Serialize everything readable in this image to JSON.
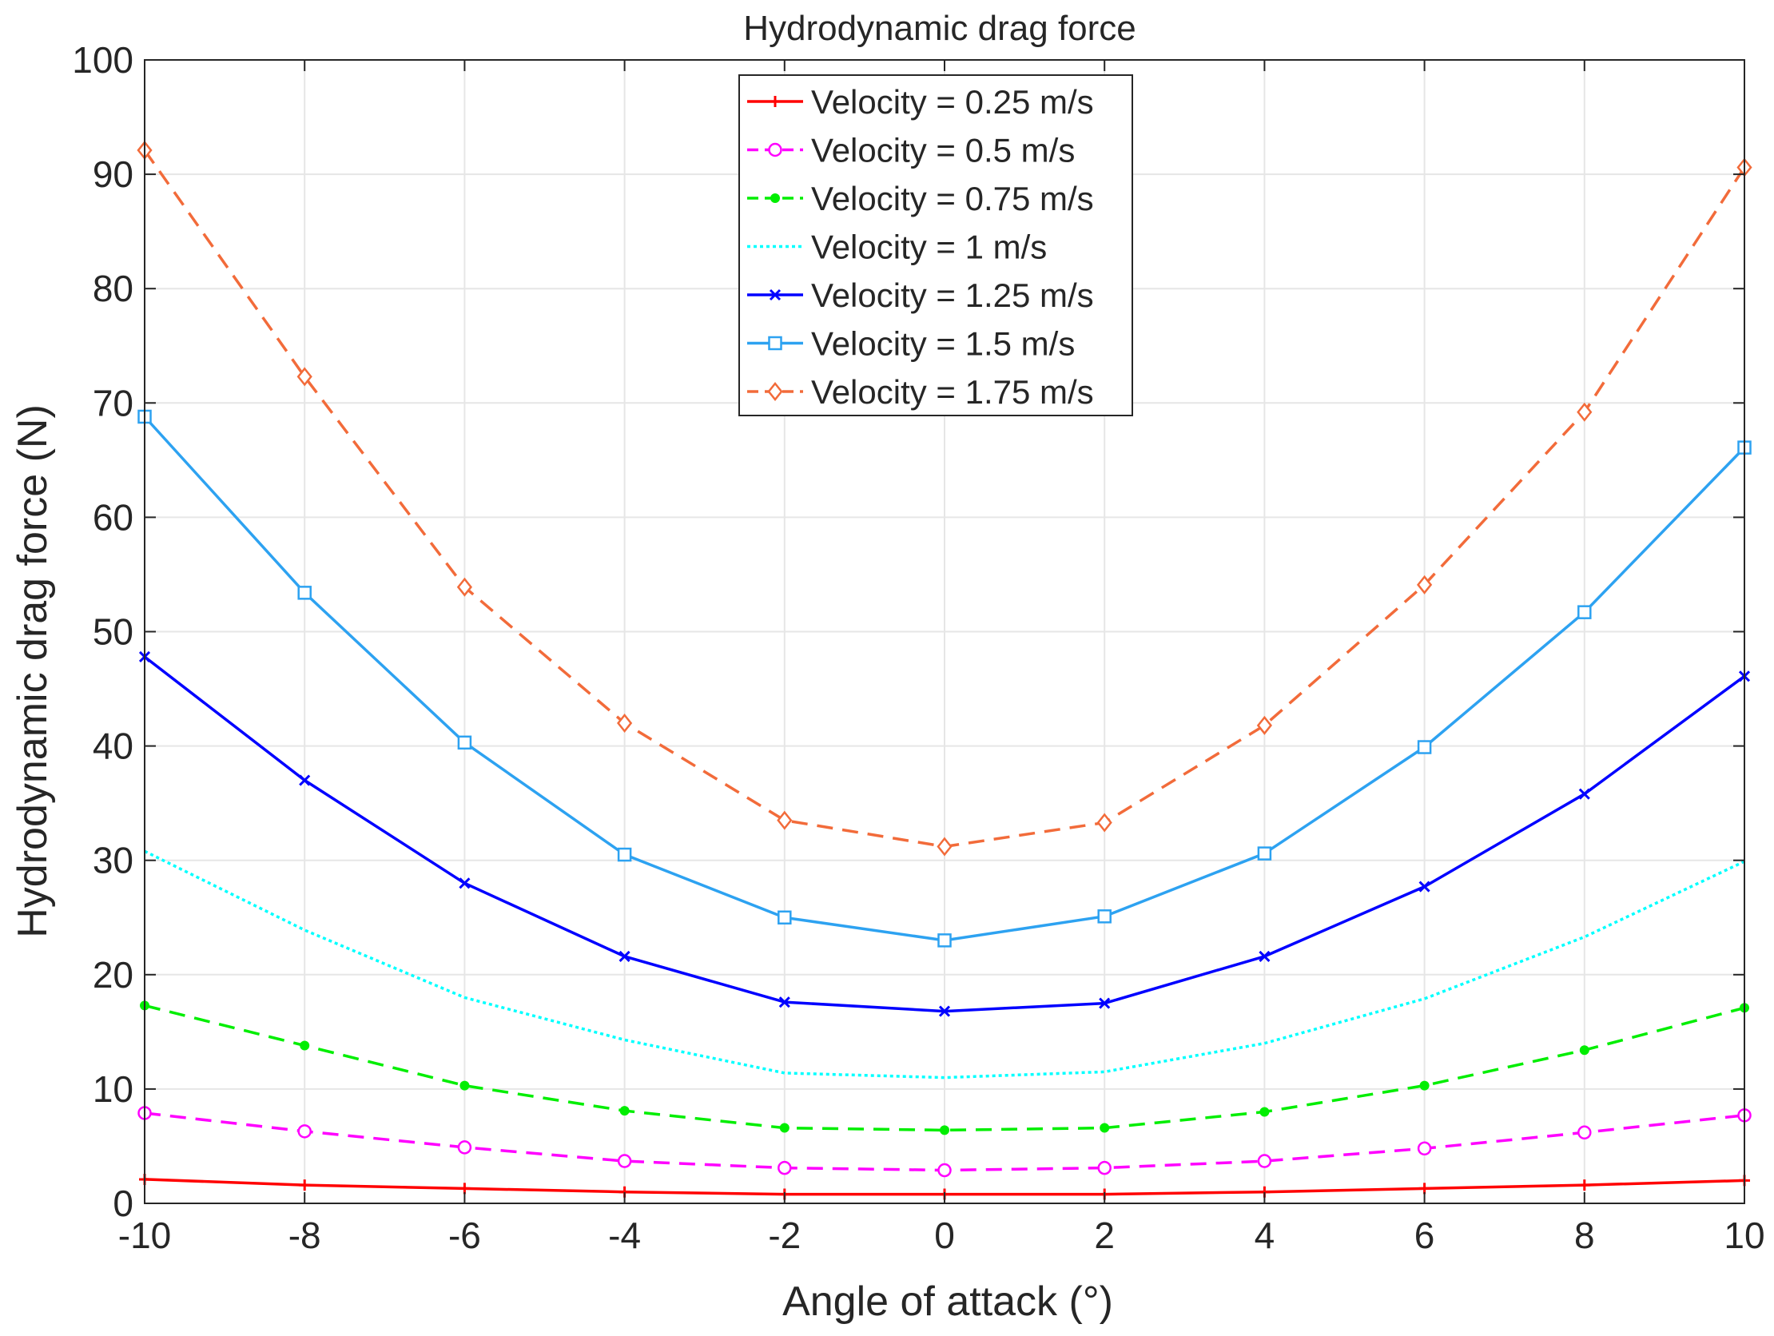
{
  "chart_data": {
    "type": "line",
    "title": "Hydrodynamic drag force",
    "xlabel": "Angle of attack (°)",
    "ylabel": "Hydrodynamic drag force (N)",
    "xlim": [
      -10,
      10
    ],
    "ylim": [
      0,
      100
    ],
    "xticks": [
      -10,
      -8,
      -6,
      -4,
      -2,
      0,
      2,
      4,
      6,
      8,
      10
    ],
    "yticks": [
      0,
      10,
      20,
      30,
      40,
      50,
      60,
      70,
      80,
      90,
      100
    ],
    "grid": true,
    "legend_position": "top-center",
    "x": [
      -10,
      -8,
      -6,
      -4,
      -2,
      0,
      2,
      4,
      6,
      8,
      10
    ],
    "series": [
      {
        "name": "Velocity = 0.25 m/s",
        "color": "#ff0000",
        "dash": "solid",
        "marker": "plus",
        "values": [
          2.1,
          1.6,
          1.3,
          1.0,
          0.8,
          0.8,
          0.8,
          1.0,
          1.3,
          1.6,
          2.0
        ]
      },
      {
        "name": "Velocity = 0.5 m/s",
        "color": "#ff00ff",
        "dash": "dashed",
        "marker": "circle",
        "values": [
          7.9,
          6.3,
          4.9,
          3.7,
          3.1,
          2.9,
          3.1,
          3.7,
          4.8,
          6.2,
          7.7
        ]
      },
      {
        "name": "Velocity = 0.75 m/s",
        "color": "#00ee00",
        "dash": "dashed",
        "marker": "dot",
        "values": [
          17.3,
          13.8,
          10.3,
          8.1,
          6.6,
          6.4,
          6.6,
          8.0,
          10.3,
          13.4,
          17.1
        ]
      },
      {
        "name": "Velocity = 1 m/s",
        "color": "#00ffff",
        "dash": "dotted",
        "marker": "none",
        "values": [
          30.8,
          23.9,
          18.0,
          14.3,
          11.4,
          11.0,
          11.5,
          14.0,
          17.9,
          23.3,
          29.9
        ]
      },
      {
        "name": "Velocity = 1.25 m/s",
        "color": "#0000ff",
        "dash": "solid",
        "marker": "x",
        "values": [
          47.8,
          37.0,
          28.0,
          21.6,
          17.6,
          16.8,
          17.5,
          21.6,
          27.7,
          35.8,
          46.1
        ]
      },
      {
        "name": "Velocity = 1.5 m/s",
        "color": "#2da2f1",
        "dash": "solid",
        "marker": "square",
        "values": [
          68.8,
          53.4,
          40.3,
          30.5,
          25.0,
          23.0,
          25.1,
          30.6,
          39.9,
          51.7,
          66.1
        ]
      },
      {
        "name": "Velocity = 1.75 m/s",
        "color": "#f26b3a",
        "dash": "dashed",
        "marker": "diamond",
        "values": [
          92.1,
          72.3,
          53.9,
          42.0,
          33.5,
          31.2,
          33.3,
          41.8,
          54.1,
          69.2,
          90.6
        ]
      }
    ]
  }
}
